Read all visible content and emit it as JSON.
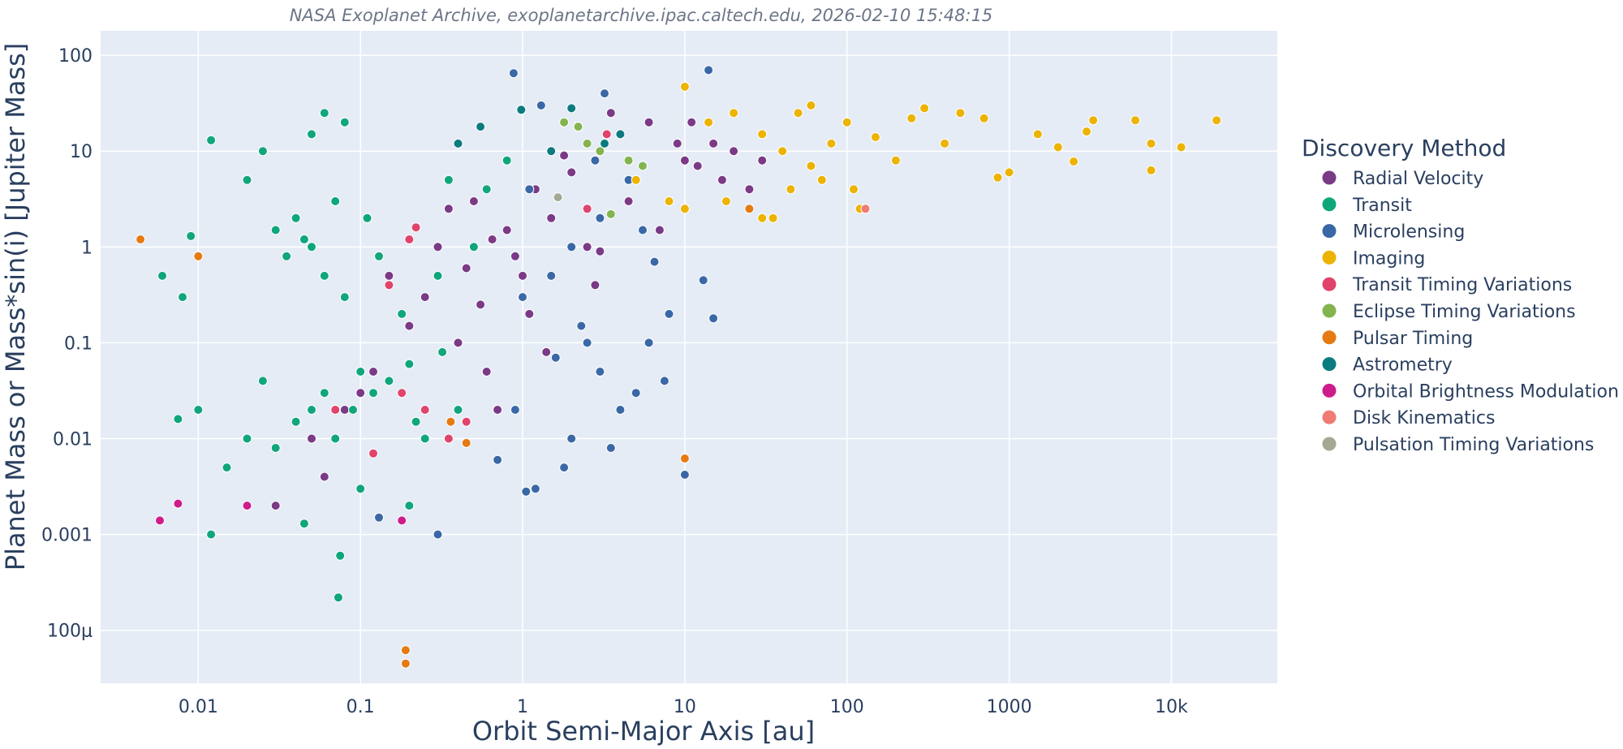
{
  "caption": "NASA Exoplanet Archive, exoplanetarchive.ipac.caltech.edu, 2026-02-10 15:48:15",
  "colors": {
    "plot_bg": "#e5ecf6",
    "grid": "#ffffff",
    "text": "#2a3f5f"
  },
  "chart_data": {
    "type": "scatter",
    "xlabel": "Orbit Semi-Major Axis [au]",
    "ylabel": "Planet Mass or Mass*sin(i) [Jupiter Mass]",
    "x_scale": "log",
    "y_scale": "log",
    "xlim": [
      0.0025,
      45000
    ],
    "ylim": [
      2.8e-05,
      180
    ],
    "grid": true,
    "x_ticks": [
      {
        "value": 0.01,
        "label": "0.01"
      },
      {
        "value": 0.1,
        "label": "0.1"
      },
      {
        "value": 1,
        "label": "1"
      },
      {
        "value": 10,
        "label": "10"
      },
      {
        "value": 100,
        "label": "100"
      },
      {
        "value": 1000,
        "label": "1000"
      },
      {
        "value": 10000,
        "label": "10k"
      }
    ],
    "y_ticks": [
      {
        "value": 100,
        "label": "100"
      },
      {
        "value": 10,
        "label": "10"
      },
      {
        "value": 1,
        "label": "1"
      },
      {
        "value": 0.1,
        "label": "0.1"
      },
      {
        "value": 0.01,
        "label": "0.01"
      },
      {
        "value": 0.001,
        "label": "0.001"
      },
      {
        "value": 0.0001,
        "label": "100μ"
      }
    ],
    "legend_title": "Discovery Method",
    "legend_position": "right",
    "series": [
      {
        "name": "Radial Velocity",
        "color": "#7b3a86",
        "points": [
          [
            1.2,
            4
          ],
          [
            2,
            6
          ],
          [
            3,
            10
          ],
          [
            1.5,
            2
          ],
          [
            0.8,
            1.5
          ],
          [
            4,
            15
          ],
          [
            6,
            20
          ],
          [
            10,
            8
          ],
          [
            15,
            12
          ],
          [
            0.5,
            3
          ],
          [
            0.3,
            1
          ],
          [
            0.25,
            0.3
          ],
          [
            0.4,
            0.1
          ],
          [
            0.6,
            0.05
          ],
          [
            0.7,
            0.02
          ],
          [
            1,
            0.5
          ],
          [
            2.5,
            1
          ],
          [
            5,
            5
          ],
          [
            8,
            3
          ],
          [
            12,
            7
          ],
          [
            20,
            10
          ],
          [
            25,
            4
          ],
          [
            30,
            8
          ],
          [
            0.2,
            0.15
          ],
          [
            0.15,
            0.5
          ],
          [
            0.12,
            0.05
          ],
          [
            0.1,
            0.03
          ],
          [
            0.08,
            0.02
          ],
          [
            0.05,
            0.01
          ],
          [
            0.03,
            0.002
          ],
          [
            0.06,
            0.004
          ],
          [
            3.5,
            25
          ],
          [
            2.2,
            18
          ],
          [
            1.8,
            9
          ],
          [
            0.9,
            0.8
          ],
          [
            1.1,
            0.2
          ],
          [
            0.45,
            0.6
          ],
          [
            0.35,
            2.5
          ],
          [
            7,
            1.5
          ],
          [
            9,
            12
          ],
          [
            17,
            5
          ],
          [
            11,
            20
          ],
          [
            3,
            0.9
          ],
          [
            4.5,
            3
          ],
          [
            2.8,
            0.4
          ],
          [
            1.4,
            0.08
          ],
          [
            0.55,
            0.25
          ],
          [
            0.65,
            1.2
          ]
        ]
      },
      {
        "name": "Transit",
        "color": "#10a67c",
        "points": [
          [
            0.05,
            1
          ],
          [
            0.04,
            2
          ],
          [
            0.03,
            1.5
          ],
          [
            0.06,
            0.5
          ],
          [
            0.08,
            0.3
          ],
          [
            0.045,
            1.2
          ],
          [
            0.035,
            0.8
          ],
          [
            0.07,
            3
          ],
          [
            0.1,
            0.05
          ],
          [
            0.12,
            0.03
          ],
          [
            0.09,
            0.02
          ],
          [
            0.15,
            0.04
          ],
          [
            0.2,
            0.06
          ],
          [
            0.06,
            0.03
          ],
          [
            0.05,
            0.02
          ],
          [
            0.07,
            0.01
          ],
          [
            0.04,
            0.015
          ],
          [
            0.03,
            0.008
          ],
          [
            0.02,
            0.01
          ],
          [
            0.015,
            0.005
          ],
          [
            0.01,
            0.02
          ],
          [
            0.025,
            0.04
          ],
          [
            0.3,
            0.5
          ],
          [
            0.5,
            1
          ],
          [
            0.4,
            0.02
          ],
          [
            0.02,
            5
          ],
          [
            0.025,
            10
          ],
          [
            0.05,
            15
          ],
          [
            0.06,
            25
          ],
          [
            0.08,
            20
          ],
          [
            0.012,
            13
          ],
          [
            0.009,
            1.3
          ],
          [
            0.006,
            0.5
          ],
          [
            0.008,
            0.3
          ],
          [
            0.0075,
            0.016
          ],
          [
            0.012,
            0.001
          ],
          [
            0.075,
            0.0006
          ],
          [
            0.073,
            0.00022
          ],
          [
            0.045,
            0.0013
          ],
          [
            0.1,
            0.003
          ],
          [
            0.2,
            0.002
          ],
          [
            0.25,
            0.01
          ],
          [
            0.18,
            0.2
          ],
          [
            0.13,
            0.8
          ],
          [
            0.11,
            2
          ],
          [
            0.35,
            5
          ],
          [
            0.6,
            4
          ],
          [
            0.8,
            8
          ],
          [
            0.32,
            0.08
          ],
          [
            0.22,
            0.015
          ]
        ]
      },
      {
        "name": "Microlensing",
        "color": "#3a68a6",
        "points": [
          [
            1.5,
            0.5
          ],
          [
            2,
            1
          ],
          [
            3,
            2
          ],
          [
            1,
            0.3
          ],
          [
            2.5,
            0.1
          ],
          [
            3,
            0.05
          ],
          [
            4,
            0.02
          ],
          [
            2,
            0.01
          ],
          [
            1.8,
            0.005
          ],
          [
            1.2,
            0.003
          ],
          [
            3.5,
            0.008
          ],
          [
            5,
            0.03
          ],
          [
            6,
            0.1
          ],
          [
            8,
            0.2
          ],
          [
            4.5,
            5
          ],
          [
            2.8,
            8
          ],
          [
            1.1,
            4
          ],
          [
            0.9,
            0.02
          ],
          [
            0.7,
            0.006
          ],
          [
            1.05,
            0.0028
          ],
          [
            0.3,
            0.001
          ],
          [
            0.13,
            0.0015
          ],
          [
            0.88,
            65
          ],
          [
            1.3,
            30
          ],
          [
            3.2,
            40
          ],
          [
            14,
            70
          ],
          [
            15,
            0.18
          ],
          [
            13,
            0.45
          ],
          [
            10,
            0.0042
          ],
          [
            7.5,
            0.04
          ],
          [
            6.5,
            0.7
          ],
          [
            5.5,
            1.5
          ],
          [
            2.3,
            0.15
          ],
          [
            1.6,
            0.07
          ]
        ]
      },
      {
        "name": "Imaging",
        "color": "#ecb300",
        "points": [
          [
            10,
            47
          ],
          [
            14,
            20
          ],
          [
            20,
            25
          ],
          [
            30,
            15
          ],
          [
            40,
            10
          ],
          [
            50,
            25
          ],
          [
            60,
            30
          ],
          [
            80,
            12
          ],
          [
            100,
            20
          ],
          [
            150,
            14
          ],
          [
            200,
            8
          ],
          [
            250,
            22
          ],
          [
            300,
            28
          ],
          [
            400,
            12
          ],
          [
            500,
            25
          ],
          [
            700,
            22
          ],
          [
            850,
            5.3
          ],
          [
            1500,
            15
          ],
          [
            2000,
            11
          ],
          [
            2500,
            7.8
          ],
          [
            3000,
            16
          ],
          [
            3300,
            21
          ],
          [
            6000,
            21
          ],
          [
            7500,
            6.3
          ],
          [
            7500,
            12
          ],
          [
            11500,
            11
          ],
          [
            19000,
            21
          ],
          [
            110,
            4
          ],
          [
            45,
            4
          ],
          [
            35,
            2
          ],
          [
            30,
            2
          ],
          [
            120,
            2.5
          ],
          [
            1000,
            6
          ],
          [
            60,
            7
          ],
          [
            70,
            5
          ],
          [
            18,
            3
          ],
          [
            10,
            2.5
          ],
          [
            8,
            3
          ],
          [
            5,
            5
          ]
        ]
      },
      {
        "name": "Transit Timing Variations",
        "color": "#e0446b",
        "points": [
          [
            0.07,
            0.02
          ],
          [
            0.15,
            0.4
          ],
          [
            0.2,
            1.2
          ],
          [
            0.18,
            0.03
          ],
          [
            0.25,
            0.02
          ],
          [
            0.12,
            0.007
          ],
          [
            0.45,
            0.015
          ],
          [
            0.35,
            0.01
          ],
          [
            0.22,
            1.6
          ],
          [
            2.5,
            2.5
          ],
          [
            3.3,
            15
          ]
        ]
      },
      {
        "name": "Eclipse Timing Variations",
        "color": "#84b44f",
        "points": [
          [
            1.8,
            20
          ],
          [
            2.2,
            18
          ],
          [
            3.5,
            2.2
          ],
          [
            4.5,
            8
          ],
          [
            5.5,
            7
          ],
          [
            3,
            10
          ],
          [
            2.5,
            12
          ]
        ]
      },
      {
        "name": "Pulsar Timing",
        "color": "#e57a12",
        "points": [
          [
            0.0044,
            1.2
          ],
          [
            0.01,
            0.8
          ],
          [
            0.19,
            6.2e-05
          ],
          [
            0.19,
            4.5e-05
          ],
          [
            0.36,
            0.015
          ],
          [
            0.45,
            0.009
          ],
          [
            10,
            0.0062
          ],
          [
            25,
            2.5
          ]
        ]
      },
      {
        "name": "Astrometry",
        "color": "#0c7b7f",
        "points": [
          [
            2,
            28
          ],
          [
            4,
            15
          ],
          [
            1.5,
            10
          ],
          [
            0.4,
            12
          ],
          [
            0.55,
            18
          ],
          [
            0.98,
            27
          ],
          [
            3.2,
            12
          ]
        ]
      },
      {
        "name": "Orbital Brightness Modulation",
        "color": "#cf1c8b",
        "points": [
          [
            0.0058,
            0.0014
          ],
          [
            0.0075,
            0.0021
          ],
          [
            0.18,
            0.0014
          ],
          [
            0.02,
            0.002
          ]
        ]
      },
      {
        "name": "Disk Kinematics",
        "color": "#ef7b72",
        "points": [
          [
            130,
            2.5
          ]
        ]
      },
      {
        "name": "Pulsation Timing Variations",
        "color": "#a5a993",
        "points": [
          [
            1.65,
            3.3
          ]
        ]
      }
    ]
  }
}
